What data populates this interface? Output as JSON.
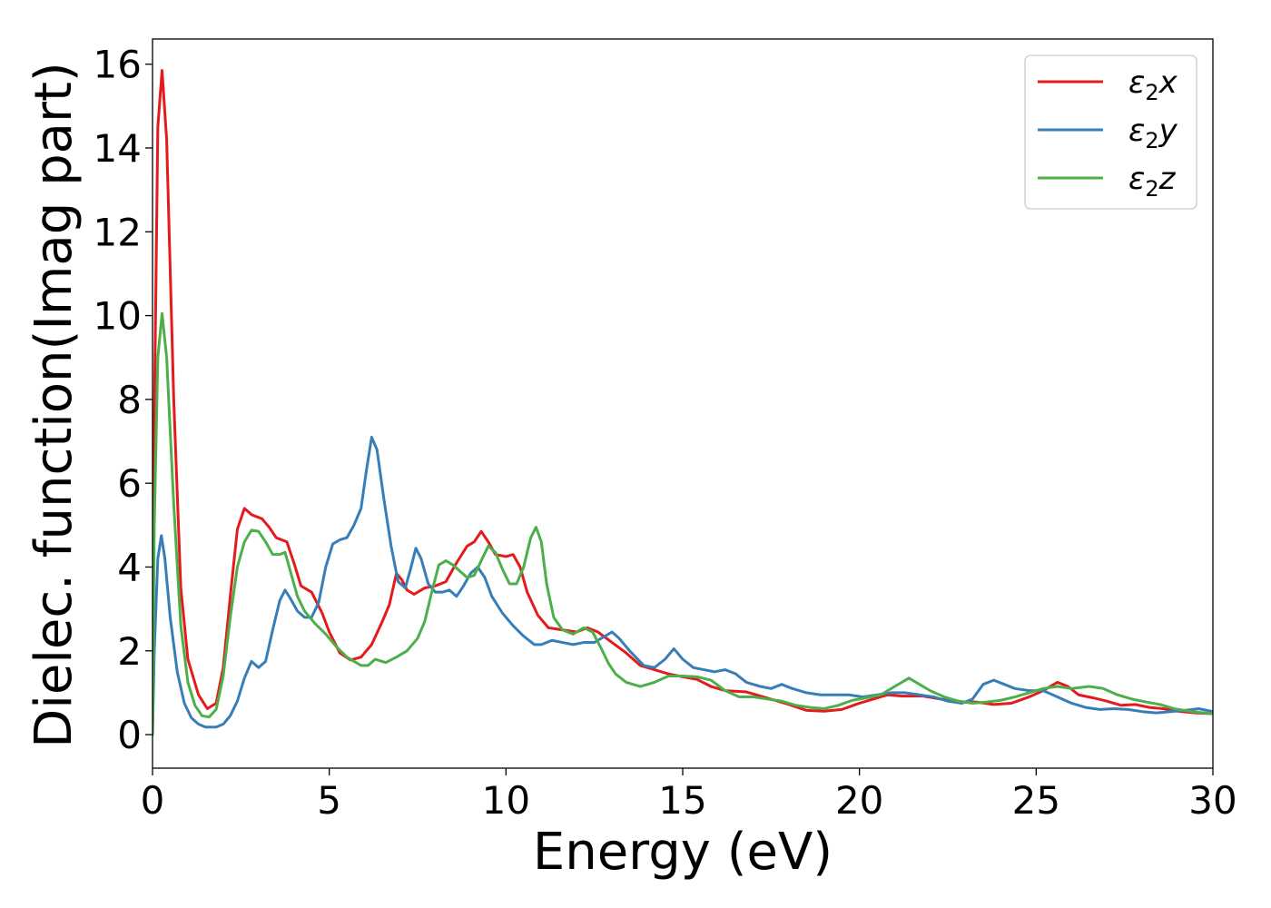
{
  "chart_data": {
    "type": "line",
    "title": "",
    "xlabel": "Energy (eV)",
    "ylabel": "Dielec. function(Imag part)",
    "xlim": [
      0,
      30
    ],
    "ylim": [
      -0.8,
      16.6
    ],
    "xticks": [
      "0",
      "5",
      "10",
      "15",
      "20",
      "25",
      "30"
    ],
    "yticks": [
      "0",
      "2",
      "4",
      "6",
      "8",
      "10",
      "12",
      "14",
      "16"
    ],
    "grid": false,
    "legend_position": "top-right",
    "series": [
      {
        "name": "ε₂x",
        "legend_base": "ε",
        "legend_sub": "2",
        "legend_var": "x",
        "color": "#e41a1c",
        "points": [
          [
            0,
            0
          ],
          [
            0.05,
            7.5
          ],
          [
            0.15,
            14.5
          ],
          [
            0.27,
            15.85
          ],
          [
            0.4,
            14.2
          ],
          [
            0.6,
            8.0
          ],
          [
            0.8,
            3.5
          ],
          [
            1.0,
            1.8
          ],
          [
            1.3,
            0.95
          ],
          [
            1.55,
            0.62
          ],
          [
            1.8,
            0.75
          ],
          [
            2.0,
            1.6
          ],
          [
            2.2,
            3.3
          ],
          [
            2.4,
            4.9
          ],
          [
            2.6,
            5.4
          ],
          [
            2.8,
            5.25
          ],
          [
            3.1,
            5.15
          ],
          [
            3.3,
            4.95
          ],
          [
            3.5,
            4.7
          ],
          [
            3.8,
            4.6
          ],
          [
            4.0,
            4.1
          ],
          [
            4.2,
            3.55
          ],
          [
            4.5,
            3.4
          ],
          [
            4.8,
            2.9
          ],
          [
            5.0,
            2.45
          ],
          [
            5.3,
            1.95
          ],
          [
            5.6,
            1.78
          ],
          [
            5.9,
            1.85
          ],
          [
            6.2,
            2.15
          ],
          [
            6.5,
            2.7
          ],
          [
            6.7,
            3.1
          ],
          [
            6.9,
            3.85
          ],
          [
            7.05,
            3.7
          ],
          [
            7.2,
            3.45
          ],
          [
            7.4,
            3.35
          ],
          [
            7.7,
            3.5
          ],
          [
            8.0,
            3.55
          ],
          [
            8.3,
            3.65
          ],
          [
            8.6,
            4.1
          ],
          [
            8.9,
            4.5
          ],
          [
            9.1,
            4.6
          ],
          [
            9.3,
            4.85
          ],
          [
            9.5,
            4.6
          ],
          [
            9.7,
            4.3
          ],
          [
            10.0,
            4.25
          ],
          [
            10.2,
            4.3
          ],
          [
            10.4,
            4.0
          ],
          [
            10.6,
            3.4
          ],
          [
            10.9,
            2.85
          ],
          [
            11.2,
            2.55
          ],
          [
            11.6,
            2.5
          ],
          [
            12.0,
            2.45
          ],
          [
            12.3,
            2.55
          ],
          [
            12.6,
            2.45
          ],
          [
            13.0,
            2.2
          ],
          [
            13.4,
            1.95
          ],
          [
            13.8,
            1.65
          ],
          [
            14.2,
            1.55
          ],
          [
            14.6,
            1.45
          ],
          [
            15.0,
            1.38
          ],
          [
            15.4,
            1.32
          ],
          [
            15.8,
            1.15
          ],
          [
            16.2,
            1.05
          ],
          [
            16.8,
            1.02
          ],
          [
            17.2,
            0.92
          ],
          [
            17.6,
            0.82
          ],
          [
            18.0,
            0.72
          ],
          [
            18.5,
            0.58
          ],
          [
            19.0,
            0.56
          ],
          [
            19.5,
            0.6
          ],
          [
            20.0,
            0.75
          ],
          [
            20.4,
            0.85
          ],
          [
            20.8,
            0.95
          ],
          [
            21.2,
            0.92
          ],
          [
            21.8,
            0.92
          ],
          [
            22.3,
            0.85
          ],
          [
            22.8,
            0.78
          ],
          [
            23.3,
            0.78
          ],
          [
            23.8,
            0.72
          ],
          [
            24.3,
            0.75
          ],
          [
            24.8,
            0.9
          ],
          [
            25.2,
            1.05
          ],
          [
            25.6,
            1.25
          ],
          [
            25.9,
            1.15
          ],
          [
            26.2,
            0.95
          ],
          [
            26.6,
            0.88
          ],
          [
            27.0,
            0.8
          ],
          [
            27.4,
            0.7
          ],
          [
            27.8,
            0.72
          ],
          [
            28.2,
            0.65
          ],
          [
            28.6,
            0.62
          ],
          [
            29.0,
            0.56
          ],
          [
            29.5,
            0.52
          ],
          [
            30.0,
            0.5
          ]
        ]
      },
      {
        "name": "ε₂y",
        "legend_base": "ε",
        "legend_sub": "2",
        "legend_var": "y",
        "color": "#377eb8",
        "points": [
          [
            0,
            0
          ],
          [
            0.05,
            2.0
          ],
          [
            0.15,
            4.2
          ],
          [
            0.25,
            4.75
          ],
          [
            0.35,
            4.2
          ],
          [
            0.5,
            2.8
          ],
          [
            0.7,
            1.5
          ],
          [
            0.9,
            0.75
          ],
          [
            1.1,
            0.4
          ],
          [
            1.3,
            0.25
          ],
          [
            1.5,
            0.18
          ],
          [
            1.8,
            0.18
          ],
          [
            2.0,
            0.25
          ],
          [
            2.2,
            0.45
          ],
          [
            2.4,
            0.8
          ],
          [
            2.6,
            1.35
          ],
          [
            2.8,
            1.75
          ],
          [
            3.0,
            1.6
          ],
          [
            3.2,
            1.75
          ],
          [
            3.4,
            2.5
          ],
          [
            3.6,
            3.2
          ],
          [
            3.75,
            3.45
          ],
          [
            3.9,
            3.25
          ],
          [
            4.1,
            2.95
          ],
          [
            4.3,
            2.8
          ],
          [
            4.5,
            2.8
          ],
          [
            4.7,
            3.15
          ],
          [
            4.9,
            4.0
          ],
          [
            5.1,
            4.55
          ],
          [
            5.3,
            4.65
          ],
          [
            5.5,
            4.7
          ],
          [
            5.7,
            5.0
          ],
          [
            5.9,
            5.4
          ],
          [
            6.05,
            6.3
          ],
          [
            6.2,
            7.1
          ],
          [
            6.35,
            6.8
          ],
          [
            6.55,
            5.6
          ],
          [
            6.75,
            4.5
          ],
          [
            6.95,
            3.65
          ],
          [
            7.15,
            3.5
          ],
          [
            7.3,
            3.95
          ],
          [
            7.45,
            4.45
          ],
          [
            7.6,
            4.2
          ],
          [
            7.8,
            3.6
          ],
          [
            8.0,
            3.4
          ],
          [
            8.2,
            3.4
          ],
          [
            8.4,
            3.45
          ],
          [
            8.6,
            3.3
          ],
          [
            8.8,
            3.55
          ],
          [
            9.0,
            3.85
          ],
          [
            9.2,
            4.0
          ],
          [
            9.4,
            3.75
          ],
          [
            9.6,
            3.3
          ],
          [
            9.9,
            2.9
          ],
          [
            10.2,
            2.6
          ],
          [
            10.5,
            2.35
          ],
          [
            10.8,
            2.15
          ],
          [
            11.0,
            2.15
          ],
          [
            11.3,
            2.25
          ],
          [
            11.6,
            2.2
          ],
          [
            11.9,
            2.15
          ],
          [
            12.2,
            2.2
          ],
          [
            12.5,
            2.2
          ],
          [
            12.7,
            2.3
          ],
          [
            13.0,
            2.45
          ],
          [
            13.2,
            2.3
          ],
          [
            13.5,
            2.0
          ],
          [
            13.9,
            1.65
          ],
          [
            14.2,
            1.6
          ],
          [
            14.5,
            1.8
          ],
          [
            14.75,
            2.05
          ],
          [
            15.0,
            1.8
          ],
          [
            15.3,
            1.6
          ],
          [
            15.6,
            1.55
          ],
          [
            15.9,
            1.5
          ],
          [
            16.2,
            1.55
          ],
          [
            16.5,
            1.45
          ],
          [
            16.8,
            1.25
          ],
          [
            17.2,
            1.15
          ],
          [
            17.5,
            1.1
          ],
          [
            17.8,
            1.2
          ],
          [
            18.1,
            1.1
          ],
          [
            18.5,
            1.0
          ],
          [
            18.9,
            0.95
          ],
          [
            19.3,
            0.95
          ],
          [
            19.7,
            0.95
          ],
          [
            20.1,
            0.9
          ],
          [
            20.5,
            0.95
          ],
          [
            20.9,
            1.0
          ],
          [
            21.3,
            1.0
          ],
          [
            21.7,
            0.95
          ],
          [
            22.1,
            0.9
          ],
          [
            22.5,
            0.8
          ],
          [
            22.9,
            0.75
          ],
          [
            23.2,
            0.85
          ],
          [
            23.5,
            1.2
          ],
          [
            23.8,
            1.3
          ],
          [
            24.1,
            1.2
          ],
          [
            24.4,
            1.1
          ],
          [
            24.8,
            1.05
          ],
          [
            25.2,
            1.05
          ],
          [
            25.6,
            0.9
          ],
          [
            26.0,
            0.75
          ],
          [
            26.4,
            0.65
          ],
          [
            26.8,
            0.6
          ],
          [
            27.2,
            0.62
          ],
          [
            27.6,
            0.6
          ],
          [
            28.0,
            0.55
          ],
          [
            28.4,
            0.52
          ],
          [
            28.8,
            0.55
          ],
          [
            29.2,
            0.58
          ],
          [
            29.6,
            0.62
          ],
          [
            30.0,
            0.55
          ]
        ]
      },
      {
        "name": "ε₂z",
        "legend_base": "ε",
        "legend_sub": "2",
        "legend_var": "z",
        "color": "#4daf4a",
        "points": [
          [
            0,
            0
          ],
          [
            0.05,
            5.0
          ],
          [
            0.15,
            9.0
          ],
          [
            0.27,
            10.05
          ],
          [
            0.4,
            9.0
          ],
          [
            0.6,
            5.5
          ],
          [
            0.8,
            2.6
          ],
          [
            1.0,
            1.25
          ],
          [
            1.2,
            0.7
          ],
          [
            1.4,
            0.45
          ],
          [
            1.6,
            0.42
          ],
          [
            1.8,
            0.6
          ],
          [
            2.0,
            1.4
          ],
          [
            2.2,
            2.8
          ],
          [
            2.4,
            4.0
          ],
          [
            2.6,
            4.6
          ],
          [
            2.8,
            4.88
          ],
          [
            3.0,
            4.85
          ],
          [
            3.2,
            4.6
          ],
          [
            3.4,
            4.3
          ],
          [
            3.6,
            4.3
          ],
          [
            3.75,
            4.35
          ],
          [
            3.9,
            3.9
          ],
          [
            4.1,
            3.3
          ],
          [
            4.3,
            2.95
          ],
          [
            4.6,
            2.65
          ],
          [
            4.9,
            2.4
          ],
          [
            5.2,
            2.1
          ],
          [
            5.5,
            1.85
          ],
          [
            5.9,
            1.65
          ],
          [
            6.1,
            1.65
          ],
          [
            6.3,
            1.8
          ],
          [
            6.6,
            1.72
          ],
          [
            6.9,
            1.85
          ],
          [
            7.2,
            2.0
          ],
          [
            7.5,
            2.3
          ],
          [
            7.7,
            2.7
          ],
          [
            7.9,
            3.4
          ],
          [
            8.1,
            4.05
          ],
          [
            8.3,
            4.15
          ],
          [
            8.5,
            4.05
          ],
          [
            8.7,
            3.9
          ],
          [
            8.9,
            3.75
          ],
          [
            9.1,
            3.8
          ],
          [
            9.3,
            4.15
          ],
          [
            9.5,
            4.5
          ],
          [
            9.7,
            4.35
          ],
          [
            9.9,
            3.95
          ],
          [
            10.1,
            3.6
          ],
          [
            10.3,
            3.6
          ],
          [
            10.5,
            4.0
          ],
          [
            10.7,
            4.7
          ],
          [
            10.85,
            4.95
          ],
          [
            11.0,
            4.6
          ],
          [
            11.15,
            3.6
          ],
          [
            11.35,
            2.8
          ],
          [
            11.6,
            2.5
          ],
          [
            11.9,
            2.4
          ],
          [
            12.2,
            2.55
          ],
          [
            12.45,
            2.45
          ],
          [
            12.7,
            2.05
          ],
          [
            12.9,
            1.7
          ],
          [
            13.1,
            1.45
          ],
          [
            13.4,
            1.25
          ],
          [
            13.8,
            1.15
          ],
          [
            14.2,
            1.25
          ],
          [
            14.6,
            1.4
          ],
          [
            15.0,
            1.4
          ],
          [
            15.4,
            1.38
          ],
          [
            15.8,
            1.3
          ],
          [
            16.2,
            1.05
          ],
          [
            16.6,
            0.9
          ],
          [
            17.0,
            0.9
          ],
          [
            17.4,
            0.85
          ],
          [
            17.8,
            0.8
          ],
          [
            18.2,
            0.7
          ],
          [
            18.6,
            0.65
          ],
          [
            19.0,
            0.62
          ],
          [
            19.4,
            0.7
          ],
          [
            19.8,
            0.82
          ],
          [
            20.2,
            0.88
          ],
          [
            20.6,
            0.95
          ],
          [
            21.0,
            1.15
          ],
          [
            21.4,
            1.35
          ],
          [
            21.7,
            1.2
          ],
          [
            22.0,
            1.05
          ],
          [
            22.4,
            0.9
          ],
          [
            22.8,
            0.8
          ],
          [
            23.2,
            0.75
          ],
          [
            23.6,
            0.78
          ],
          [
            24.0,
            0.82
          ],
          [
            24.4,
            0.9
          ],
          [
            24.8,
            1.0
          ],
          [
            25.2,
            1.1
          ],
          [
            25.6,
            1.15
          ],
          [
            26.0,
            1.1
          ],
          [
            26.5,
            1.15
          ],
          [
            26.9,
            1.1
          ],
          [
            27.3,
            0.95
          ],
          [
            27.7,
            0.85
          ],
          [
            28.1,
            0.78
          ],
          [
            28.5,
            0.72
          ],
          [
            28.9,
            0.62
          ],
          [
            29.4,
            0.55
          ],
          [
            30.0,
            0.5
          ]
        ]
      }
    ]
  }
}
